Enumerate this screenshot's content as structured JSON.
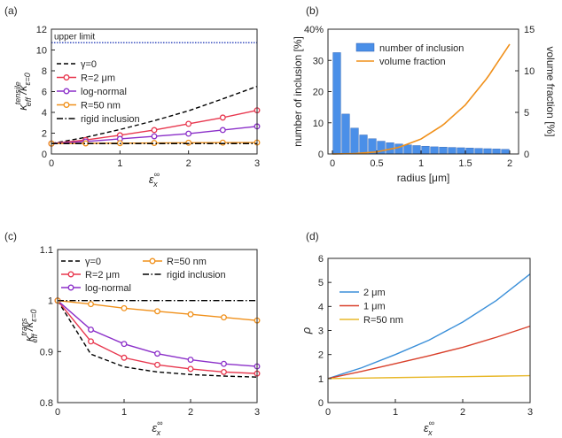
{
  "chart_data": [
    {
      "id": "a",
      "panel_label": "(a)",
      "type": "line",
      "xlim": [
        0,
        3
      ],
      "ylim": [
        0,
        12
      ],
      "xticks": [
        0,
        1,
        2,
        3
      ],
      "yticks": [
        0,
        2,
        4,
        6,
        8,
        10,
        12
      ],
      "xlabel": {
        "main": "ε",
        "sub": "x",
        "sup": "∞"
      },
      "ylabel": {
        "main": "κ",
        "sub": "eff",
        "sup": "tensile",
        "denom": "κ",
        "denom_sub": "ε=0"
      },
      "reference_line": {
        "y": 10.7,
        "label": "upper limit",
        "color": "#3a4fbf"
      },
      "legend": [
        "γ=0",
        "R=2 μm",
        "log-normal",
        "R=50 nm",
        "rigid inclusion"
      ],
      "series": [
        {
          "name": "γ=0",
          "color": "#000000",
          "dash": "dashed",
          "marker": false,
          "x": [
            0,
            0.5,
            1,
            1.5,
            2,
            2.5,
            3
          ],
          "y": [
            1,
            1.6,
            2.35,
            3.2,
            4.15,
            5.3,
            6.5
          ]
        },
        {
          "name": "R=2 μm",
          "color": "#e8384f",
          "dash": "solid",
          "marker": true,
          "x": [
            0,
            0.5,
            1,
            1.5,
            2,
            2.5,
            3
          ],
          "y": [
            1,
            1.35,
            1.8,
            2.3,
            2.9,
            3.5,
            4.2
          ]
        },
        {
          "name": "log-normal",
          "color": "#8b2fc9",
          "dash": "solid",
          "marker": true,
          "x": [
            0,
            0.5,
            1,
            1.5,
            2,
            2.5,
            3
          ],
          "y": [
            1,
            1.2,
            1.45,
            1.7,
            1.95,
            2.3,
            2.65
          ]
        },
        {
          "name": "R=50 nm",
          "color": "#f0901a",
          "dash": "solid",
          "marker": true,
          "x": [
            0,
            0.5,
            1,
            1.5,
            2,
            2.5,
            3
          ],
          "y": [
            1,
            1.02,
            1.04,
            1.06,
            1.08,
            1.09,
            1.1
          ]
        },
        {
          "name": "rigid inclusion",
          "color": "#000000",
          "dash": "dashdot",
          "marker": false,
          "x": [
            0,
            3
          ],
          "y": [
            1,
            1
          ]
        }
      ]
    },
    {
      "id": "b",
      "panel_label": "(b)",
      "type": "bar",
      "xlim": [
        -0.05,
        2.1
      ],
      "ylim": [
        0,
        40
      ],
      "y2lim": [
        0,
        15
      ],
      "xticks": [
        0,
        0.5,
        1,
        1.5,
        2
      ],
      "yticks": [
        0,
        10,
        20,
        30,
        40
      ],
      "yticklabels": [
        "0",
        "10",
        "20",
        "30",
        "40%"
      ],
      "y2ticks": [
        0,
        5,
        10,
        15
      ],
      "xlabel": "radius [μm]",
      "ylabel": "number of inclusion [%]",
      "y2label": "volume fraction [%]",
      "legend": [
        "number of inclusion",
        "volume fraction"
      ],
      "bars": {
        "name": "number of inclusion",
        "color": "#4a8fe8",
        "x": [
          0.05,
          0.15,
          0.25,
          0.35,
          0.45,
          0.55,
          0.65,
          0.75,
          0.85,
          0.95,
          1.05,
          1.15,
          1.25,
          1.35,
          1.45,
          1.55,
          1.65,
          1.75,
          1.85,
          1.95
        ],
        "values": [
          32.5,
          12.8,
          8.3,
          6.1,
          4.9,
          4.1,
          3.6,
          3.2,
          2.9,
          2.7,
          2.5,
          2.3,
          2.2,
          2.1,
          2.0,
          1.9,
          1.8,
          1.7,
          1.6,
          1.5
        ]
      },
      "line": {
        "name": "volume fraction",
        "color": "#f0901a",
        "x": [
          0,
          0.25,
          0.5,
          0.75,
          1.0,
          1.25,
          1.5,
          1.75,
          2.0
        ],
        "y": [
          0,
          0.05,
          0.25,
          0.8,
          1.8,
          3.5,
          5.9,
          9.2,
          13.2
        ]
      }
    },
    {
      "id": "c",
      "panel_label": "(c)",
      "type": "line",
      "xlim": [
        0,
        3
      ],
      "ylim": [
        0.8,
        1.1
      ],
      "xticks": [
        0,
        1,
        2,
        3
      ],
      "yticks": [
        0.8,
        0.9,
        1,
        1.1
      ],
      "xlabel": {
        "main": "ε",
        "sub": "x",
        "sup": "∞"
      },
      "ylabel": {
        "main": "κ",
        "sub": "eff",
        "sup": "trans",
        "denom": "κ",
        "denom_sub": "ε=0"
      },
      "legend": [
        "γ=0",
        "R=2 μm",
        "log-normal",
        "R=50 nm",
        "rigid inclusion"
      ],
      "series": [
        {
          "name": "γ=0",
          "color": "#000000",
          "dash": "dashed",
          "marker": false,
          "x": [
            0,
            0.5,
            1,
            1.5,
            2,
            2.5,
            3
          ],
          "y": [
            1,
            0.895,
            0.87,
            0.86,
            0.855,
            0.852,
            0.85
          ]
        },
        {
          "name": "R=2 μm",
          "color": "#e8384f",
          "dash": "solid",
          "marker": true,
          "x": [
            0,
            0.5,
            1,
            1.5,
            2,
            2.5,
            3
          ],
          "y": [
            1,
            0.92,
            0.888,
            0.874,
            0.866,
            0.86,
            0.857
          ]
        },
        {
          "name": "log-normal",
          "color": "#8b2fc9",
          "dash": "solid",
          "marker": true,
          "x": [
            0,
            0.5,
            1,
            1.5,
            2,
            2.5,
            3
          ],
          "y": [
            1,
            0.943,
            0.915,
            0.896,
            0.884,
            0.876,
            0.871
          ]
        },
        {
          "name": "R=50 nm",
          "color": "#f0901a",
          "dash": "solid",
          "marker": true,
          "x": [
            0,
            0.5,
            1,
            1.5,
            2,
            2.5,
            3
          ],
          "y": [
            1,
            0.993,
            0.985,
            0.979,
            0.973,
            0.967,
            0.961
          ]
        },
        {
          "name": "rigid inclusion",
          "color": "#000000",
          "dash": "dashdot",
          "marker": false,
          "x": [
            0,
            3
          ],
          "y": [
            1,
            1
          ]
        }
      ]
    },
    {
      "id": "d",
      "panel_label": "(d)",
      "type": "line",
      "xlim": [
        0,
        3
      ],
      "ylim": [
        0,
        6
      ],
      "xticks": [
        0,
        1,
        2,
        3
      ],
      "yticks": [
        0,
        1,
        2,
        3,
        4,
        5,
        6
      ],
      "xlabel": {
        "main": "ε",
        "sub": "x",
        "sup": "∞"
      },
      "ylabel": {
        "main": "ρ"
      },
      "legend": [
        "2 μm",
        "1 μm",
        "R=50 nm"
      ],
      "series": [
        {
          "name": "2 μm",
          "color": "#3a8fd9",
          "dash": "solid",
          "marker": false,
          "x": [
            0,
            0.5,
            1,
            1.5,
            2,
            2.5,
            3
          ],
          "y": [
            1,
            1.45,
            2.0,
            2.6,
            3.35,
            4.25,
            5.35
          ]
        },
        {
          "name": "1 μm",
          "color": "#d9402b",
          "dash": "solid",
          "marker": false,
          "x": [
            0,
            0.5,
            1,
            1.5,
            2,
            2.5,
            3
          ],
          "y": [
            1,
            1.3,
            1.62,
            1.95,
            2.3,
            2.72,
            3.18
          ]
        },
        {
          "name": "R=50 nm",
          "color": "#e8b82a",
          "dash": "solid",
          "marker": false,
          "x": [
            0,
            0.5,
            1,
            1.5,
            2,
            2.5,
            3
          ],
          "y": [
            1,
            1.02,
            1.04,
            1.06,
            1.08,
            1.1,
            1.12
          ]
        }
      ]
    }
  ]
}
